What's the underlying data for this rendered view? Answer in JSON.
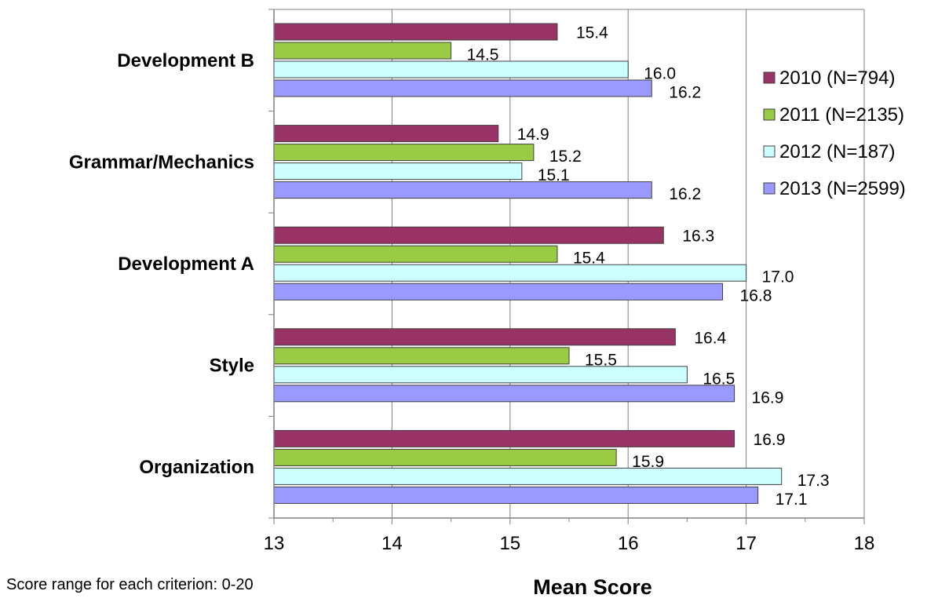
{
  "chart_data": {
    "type": "bar",
    "orientation": "horizontal",
    "categories": [
      "Development B",
      "Grammar/Mechanics",
      "Development A",
      "Style",
      "Organization"
    ],
    "series": [
      {
        "name": "2010 (N=794)",
        "color": "#993366",
        "values": [
          15.4,
          14.9,
          16.3,
          16.4,
          16.9
        ]
      },
      {
        "name": "2011 (N=2135)",
        "color": "#99cc44",
        "values": [
          14.5,
          15.2,
          15.4,
          15.5,
          15.9
        ]
      },
      {
        "name": "2012 (N=187)",
        "color": "#ccffff",
        "values": [
          16.0,
          15.1,
          17.0,
          16.5,
          17.3
        ]
      },
      {
        "name": "2013 (N=2599)",
        "color": "#9999ff",
        "values": [
          16.2,
          16.2,
          16.8,
          16.9,
          17.1
        ]
      }
    ],
    "xlabel": "Mean Score",
    "xlim": [
      13,
      18
    ],
    "x_ticks": [
      "13",
      "14",
      "15",
      "16",
      "17",
      "18"
    ],
    "grid": "vertical-major",
    "legend_position": "right"
  },
  "footnote": "Score range for each criterion: 0-20"
}
